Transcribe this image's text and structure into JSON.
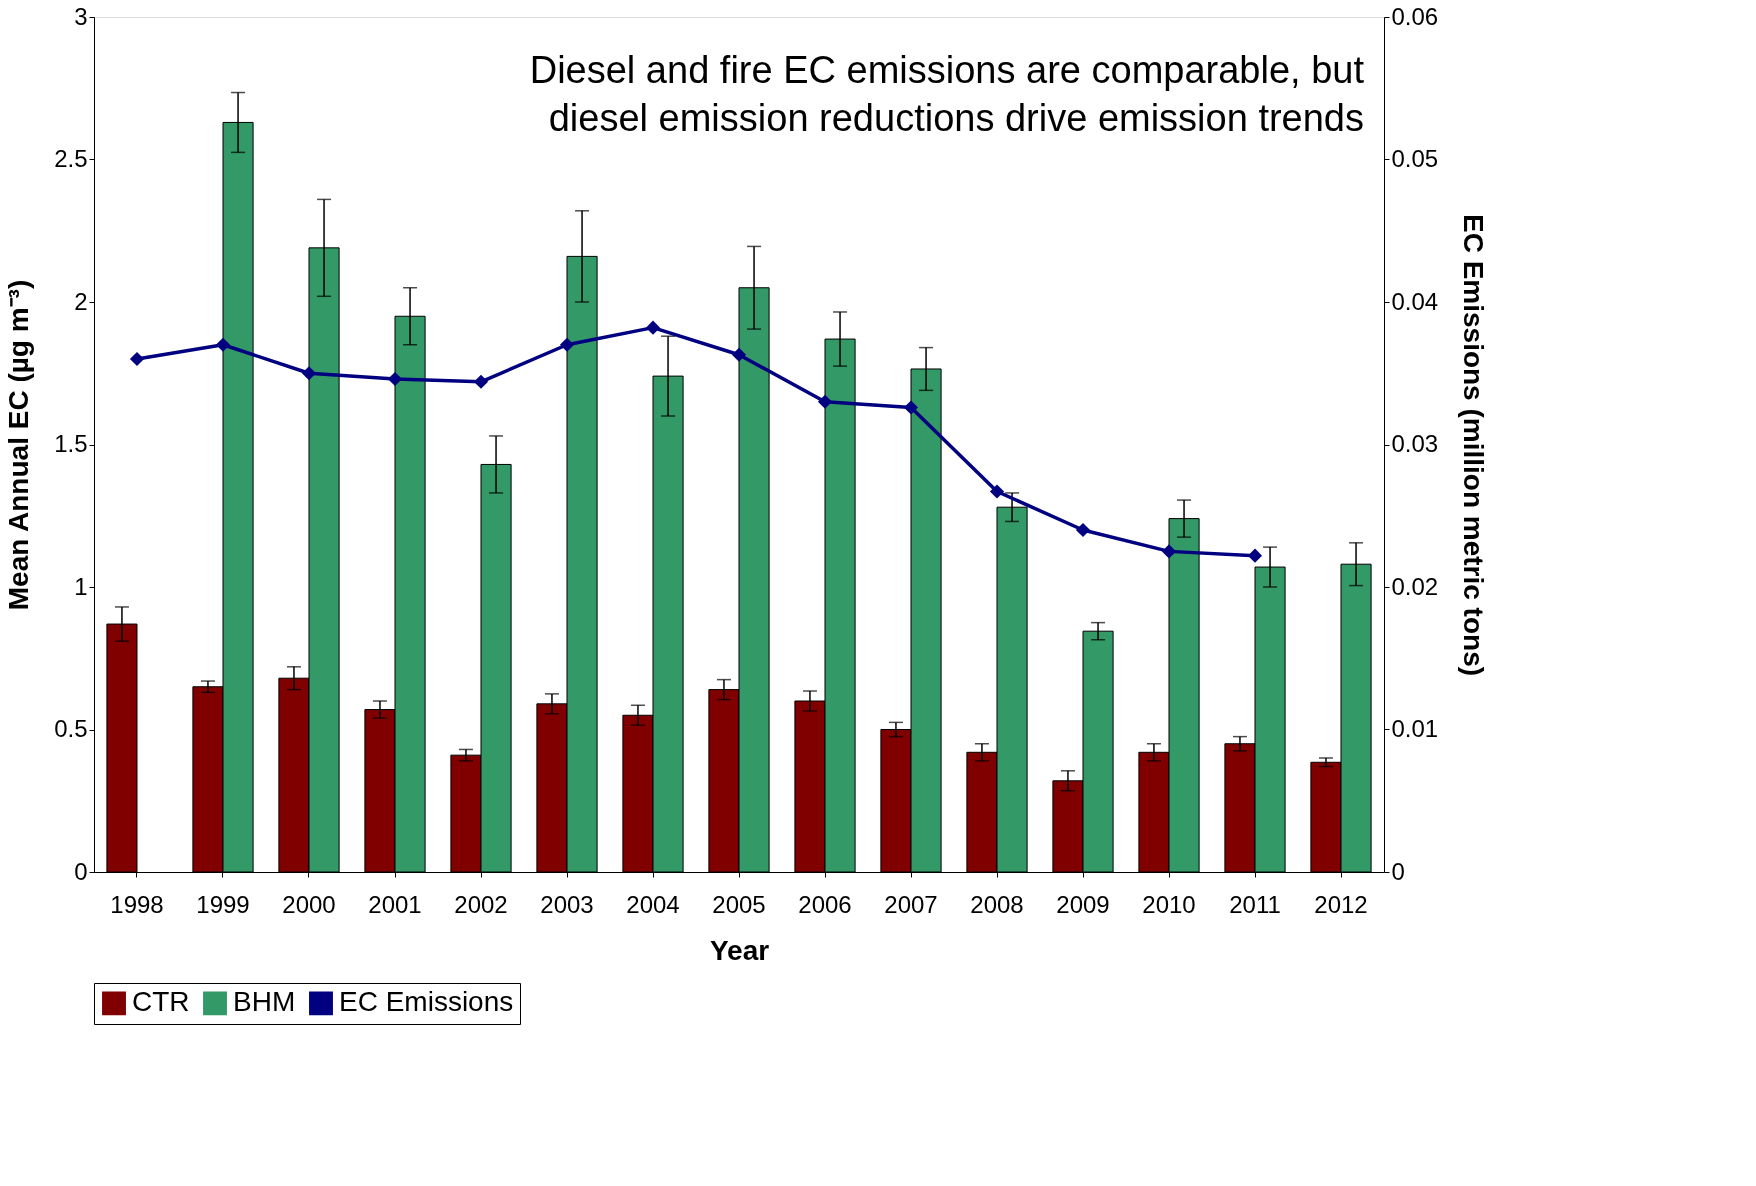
{
  "chart_data": {
    "type": "bar",
    "categories": [
      "1998",
      "1999",
      "2000",
      "2001",
      "2002",
      "2003",
      "2004",
      "2005",
      "2006",
      "2007",
      "2008",
      "2009",
      "2010",
      "2011",
      "2012"
    ],
    "xlabel": "Year",
    "ylabel": "Mean Annual EC (µg m⁻³)",
    "y2label": "EC Emissions (million metric tons)",
    "ylim": [
      0,
      3
    ],
    "yticks": [
      0,
      0.5,
      1,
      1.5,
      2,
      2.5,
      3
    ],
    "y2lim": [
      0,
      0.06
    ],
    "y2ticks": [
      0,
      0.01,
      0.02,
      0.03,
      0.04,
      0.05,
      0.06
    ],
    "grid": false,
    "legend": "bottom",
    "annotations": [
      "Diesel and fire EC emissions are comparable, but",
      "diesel emission reductions drive emission trends"
    ],
    "series": [
      {
        "name": "CTR",
        "color": "#800000",
        "values": [
          0.87,
          0.65,
          0.68,
          0.57,
          0.41,
          0.59,
          0.55,
          0.64,
          0.6,
          0.5,
          0.42,
          0.32,
          0.42,
          0.45,
          0.385
        ],
        "errors": [
          0.06,
          0.02,
          0.04,
          0.03,
          0.02,
          0.035,
          0.035,
          0.035,
          0.035,
          0.025,
          0.03,
          0.035,
          0.03,
          0.025,
          0.015
        ]
      },
      {
        "name": "BHM",
        "color": "#339966",
        "values": [
          null,
          2.63,
          2.19,
          1.95,
          1.43,
          2.16,
          1.74,
          2.05,
          1.87,
          1.765,
          1.28,
          0.845,
          1.24,
          1.07,
          1.08
        ],
        "errors": [
          null,
          0.105,
          0.17,
          0.1,
          0.1,
          0.16,
          0.14,
          0.145,
          0.095,
          0.075,
          0.05,
          0.03,
          0.065,
          0.07,
          0.075
        ]
      },
      {
        "name": "EC Emissions",
        "type": "line",
        "axis": "y2",
        "color": "#000080",
        "marker": "diamond",
        "values": [
          0.036,
          0.037,
          0.035,
          0.0346,
          0.0344,
          0.037,
          0.0382,
          0.0363,
          0.033,
          0.0326,
          0.0267,
          0.024,
          0.0225,
          0.0222,
          null
        ]
      }
    ]
  }
}
